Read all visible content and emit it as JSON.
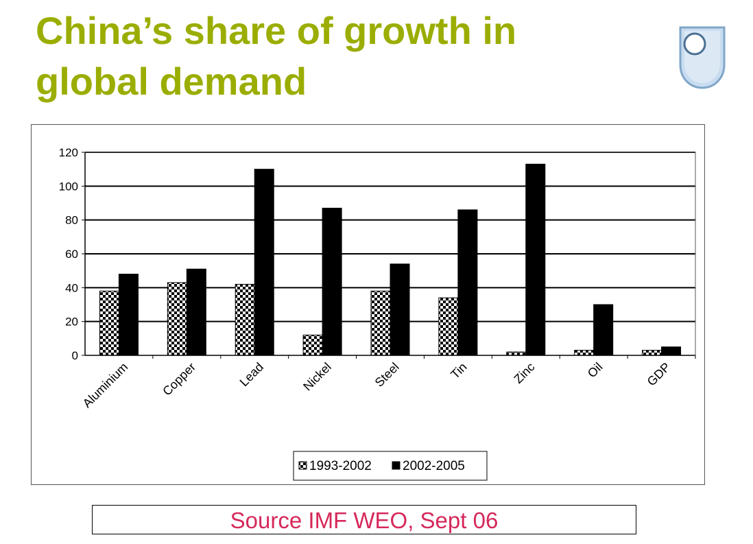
{
  "slide": {
    "title": "China’s share of growth in global demand",
    "source": "Source IMF WEO, Sept 06"
  },
  "colors": {
    "title": "#9aad00",
    "source_text": "#d6285a",
    "bar_2002_2005": "#000000",
    "bar_1993_2002_pattern": "checkerboard black/white",
    "logo_fill": "#c9dcef",
    "logo_stroke": "#7fa6c9"
  },
  "icons": {
    "logo": "shield-logo-icon"
  },
  "chart_data": {
    "type": "bar",
    "categories": [
      "Aluminium",
      "Copper",
      "Lead",
      "Nickel",
      "Steel",
      "Tin",
      "Zinc",
      "Oil",
      "GDP"
    ],
    "series": [
      {
        "name": "1993-2002",
        "values": [
          38,
          43,
          42,
          12,
          38,
          34,
          2,
          3,
          3
        ]
      },
      {
        "name": "2002-2005",
        "values": [
          48,
          51,
          110,
          87,
          54,
          86,
          113,
          30,
          5
        ]
      }
    ],
    "ylim": [
      0,
      120
    ],
    "yticks": [
      0,
      20,
      40,
      60,
      80,
      100,
      120
    ],
    "grid": true,
    "legend": "bottom"
  }
}
